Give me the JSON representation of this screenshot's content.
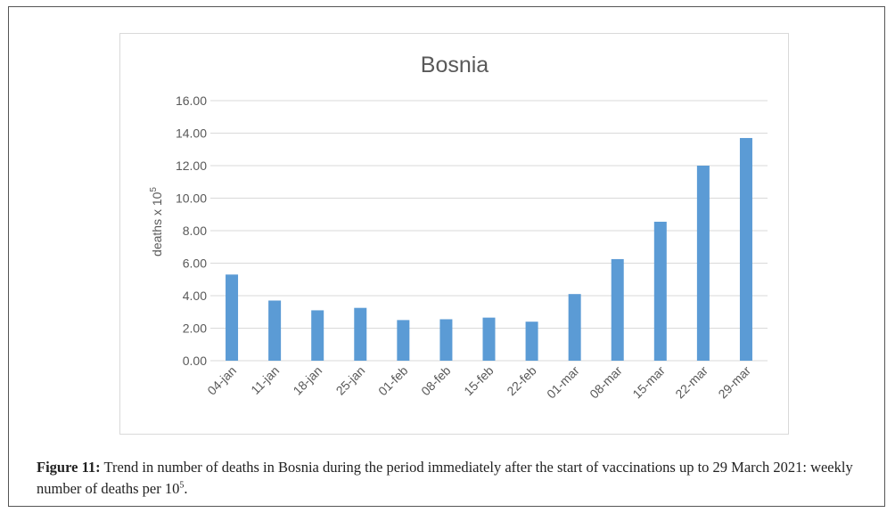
{
  "chart_data": {
    "type": "bar",
    "title": "Bosnia",
    "xlabel": "",
    "ylabel": "deaths x 10",
    "ylabel_superscript": "5",
    "categories": [
      "04-jan",
      "11-jan",
      "18-jan",
      "25-jan",
      "01-feb",
      "08-feb",
      "15-feb",
      "22-feb",
      "01-mar",
      "08-mar",
      "15-mar",
      "22-mar",
      "29-mar"
    ],
    "values": [
      5.3,
      3.7,
      3.1,
      3.25,
      2.5,
      2.55,
      2.65,
      2.4,
      4.1,
      6.25,
      8.55,
      12.0,
      13.7
    ],
    "ylim": [
      0,
      16
    ],
    "yticks": [
      "0.00",
      "2.00",
      "4.00",
      "6.00",
      "8.00",
      "10.00",
      "12.00",
      "14.00",
      "16.00"
    ],
    "grid": true,
    "bar_color": "#5b9bd5",
    "legend": "none"
  },
  "caption": {
    "label": "Figure 11:",
    "text": " Trend in number of deaths in Bosnia during the period immediately after the start of vaccinations up to 29 March 2021: weekly number of deaths per 10",
    "superscript": "5",
    "end": "."
  }
}
